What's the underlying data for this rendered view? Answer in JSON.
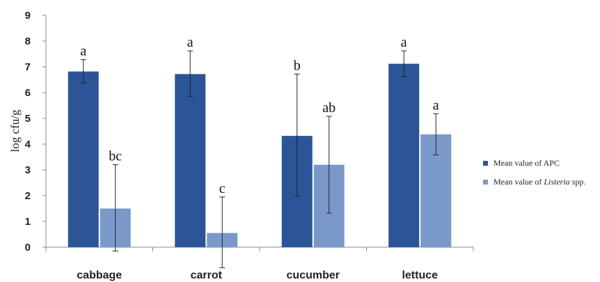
{
  "chart_data": {
    "type": "bar",
    "title": "",
    "xlabel": "",
    "ylabel": "log  cfu/g",
    "ylim": [
      0,
      9
    ],
    "yticks": [
      0,
      1,
      2,
      3,
      4,
      5,
      6,
      7,
      8,
      9
    ],
    "grid": false,
    "legend_position": "right",
    "categories": [
      "cabbage",
      "carrot",
      "cucumber",
      "lettuce"
    ],
    "series": [
      {
        "name": "Mean value of APC",
        "legend_parts": [
          "Mean value of APC"
        ],
        "color": "#2b5597",
        "values": [
          6.82,
          6.72,
          4.32,
          7.12
        ],
        "error_low": [
          6.38,
          5.85,
          1.98,
          6.62
        ],
        "error_high": [
          7.28,
          7.62,
          6.72,
          7.62
        ],
        "letters": [
          "a",
          "a",
          "b",
          "a"
        ]
      },
      {
        "name": "Mean value of Listeria spp.",
        "legend_parts": [
          "Mean value of ",
          "Listeria",
          " spp."
        ],
        "color": "#7a98c9",
        "values": [
          1.5,
          0.55,
          3.2,
          4.38
        ],
        "error_low": [
          -0.15,
          -0.8,
          1.32,
          3.58
        ],
        "error_high": [
          3.2,
          1.95,
          5.08,
          5.18
        ],
        "letters": [
          "bc",
          "c",
          "ab",
          "a"
        ]
      }
    ]
  }
}
